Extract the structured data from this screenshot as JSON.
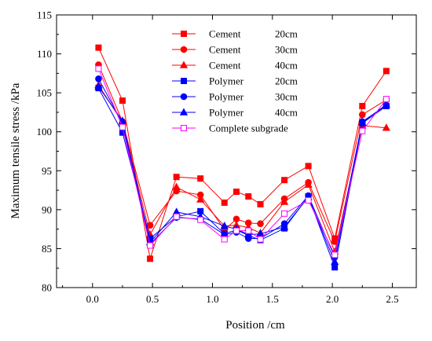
{
  "chart_data": {
    "type": "line",
    "title": "",
    "xlabel": "Position /cm",
    "ylabel": "Maximum tensile stress /kPa",
    "xlim": [
      -0.3,
      2.7
    ],
    "ylim": [
      80,
      115
    ],
    "xticks": [
      0.0,
      0.5,
      1.0,
      1.5,
      2.0,
      2.5
    ],
    "xtick_labels": [
      "0.0",
      "0.5",
      "1.0",
      "1.5",
      "2.0",
      "2.5"
    ],
    "yticks": [
      80,
      85,
      90,
      95,
      100,
      105,
      110,
      115
    ],
    "ytick_labels": [
      "80",
      "85",
      "90",
      "95",
      "100",
      "105",
      "110",
      "115"
    ],
    "grid": false,
    "legend_position": "top-center",
    "x": [
      0.05,
      0.25,
      0.48,
      0.7,
      0.9,
      1.1,
      1.2,
      1.3,
      1.4,
      1.6,
      1.8,
      2.02,
      2.25,
      2.45
    ],
    "series": [
      {
        "name": "Cement",
        "thickness": "20cm",
        "color": "#ff0000",
        "marker": "square",
        "filled": true,
        "values": [
          110.8,
          104.0,
          83.7,
          94.2,
          94.0,
          90.9,
          92.3,
          91.7,
          90.7,
          93.8,
          95.6,
          86.3,
          103.3,
          107.8
        ]
      },
      {
        "name": "Cement",
        "thickness": "30cm",
        "color": "#ff0000",
        "marker": "circle",
        "filled": true,
        "values": [
          108.6,
          101.3,
          88.0,
          92.4,
          91.9,
          87.4,
          88.8,
          88.3,
          88.2,
          91.4,
          93.5,
          85.9,
          102.2,
          104.1
        ]
      },
      {
        "name": "Cement",
        "thickness": "40cm",
        "color": "#ff0000",
        "marker": "triangle",
        "filled": true,
        "values": [
          106.0,
          101.2,
          86.8,
          92.9,
          91.3,
          87.9,
          88.0,
          87.7,
          87.0,
          91.0,
          93.2,
          84.6,
          100.8,
          100.5
        ]
      },
      {
        "name": "Polymer",
        "thickness": "20cm",
        "color": "#0000ff",
        "marker": "square",
        "filled": true,
        "values": [
          105.6,
          99.9,
          86.3,
          89.1,
          89.8,
          86.9,
          87.4,
          86.7,
          86.1,
          87.6,
          91.7,
          82.6,
          101.1,
          103.3
        ]
      },
      {
        "name": "Polymer",
        "thickness": "30cm",
        "color": "#0000ff",
        "marker": "circle",
        "filled": true,
        "values": [
          106.8,
          101.1,
          85.6,
          89.0,
          88.8,
          86.8,
          87.1,
          86.3,
          86.3,
          88.2,
          91.8,
          83.9,
          101.3,
          103.4
        ]
      },
      {
        "name": "Polymer",
        "thickness": "40cm",
        "color": "#0000ff",
        "marker": "triangle",
        "filled": true,
        "values": [
          105.8,
          101.4,
          85.8,
          89.7,
          89.1,
          87.9,
          87.5,
          86.8,
          86.9,
          87.8,
          91.6,
          83.3,
          101.2,
          103.5
        ]
      },
      {
        "name": "Complete subgrade",
        "thickness": "",
        "color": "#ff00ff",
        "marker": "square",
        "filled": false,
        "values": [
          108.1,
          100.6,
          85.4,
          89.1,
          88.7,
          86.2,
          87.3,
          87.3,
          86.2,
          89.5,
          91.2,
          84.2,
          100.1,
          104.2
        ]
      }
    ]
  }
}
